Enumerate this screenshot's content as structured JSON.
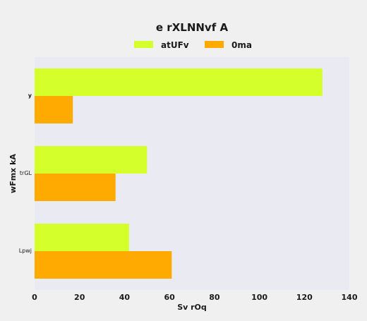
{
  "chart_data": {
    "type": "bar",
    "orientation": "horizontal",
    "title": "e rXLNNvf A",
    "xlabel": "Sv rOq",
    "ylabel": "wFmx kA",
    "categories": [
      "y",
      "trGL",
      "Lpwj"
    ],
    "series": [
      {
        "name": "atUFv",
        "color": "#d4ff2a",
        "values": [
          128,
          50,
          42
        ]
      },
      {
        "name": "0ma",
        "color": "#ffaa00",
        "values": [
          17,
          36,
          61
        ]
      }
    ],
    "xlim": [
      0,
      140
    ],
    "xticks": [
      0,
      20,
      40,
      60,
      80,
      100,
      120,
      140
    ],
    "legend_position": "top-center",
    "grid": false,
    "plot_background": "#eaeaf2",
    "page_background": "#f0f0f0"
  }
}
